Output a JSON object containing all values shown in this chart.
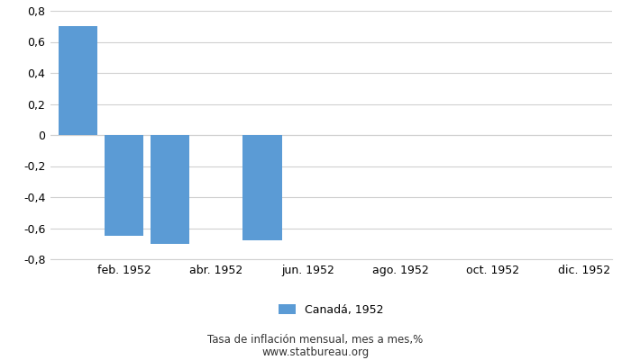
{
  "months_count": 12,
  "bar_positions": [
    0,
    1,
    2,
    4
  ],
  "bar_values": [
    0.7,
    -0.65,
    -0.7,
    -0.68
  ],
  "bar_color": "#5b9bd5",
  "ylim": [
    -0.8,
    0.8
  ],
  "yticks": [
    -0.8,
    -0.6,
    -0.4,
    -0.2,
    0.0,
    0.2,
    0.4,
    0.6,
    0.8
  ],
  "xtick_positions": [
    1,
    3,
    5,
    7,
    9,
    11
  ],
  "xtick_labels": [
    "feb. 1952",
    "abr. 1952",
    "jun. 1952",
    "ago. 1952",
    "oct. 1952",
    "dic. 1952"
  ],
  "legend_label": "Canadá, 1952",
  "footnote_line1": "Tasa de inflación mensual, mes a mes,%",
  "footnote_line2": "www.statbureau.org",
  "background_color": "#ffffff",
  "grid_color": "#d0d0d0",
  "bar_width": 0.85,
  "xlim_left": -0.6,
  "xlim_right": 11.6
}
